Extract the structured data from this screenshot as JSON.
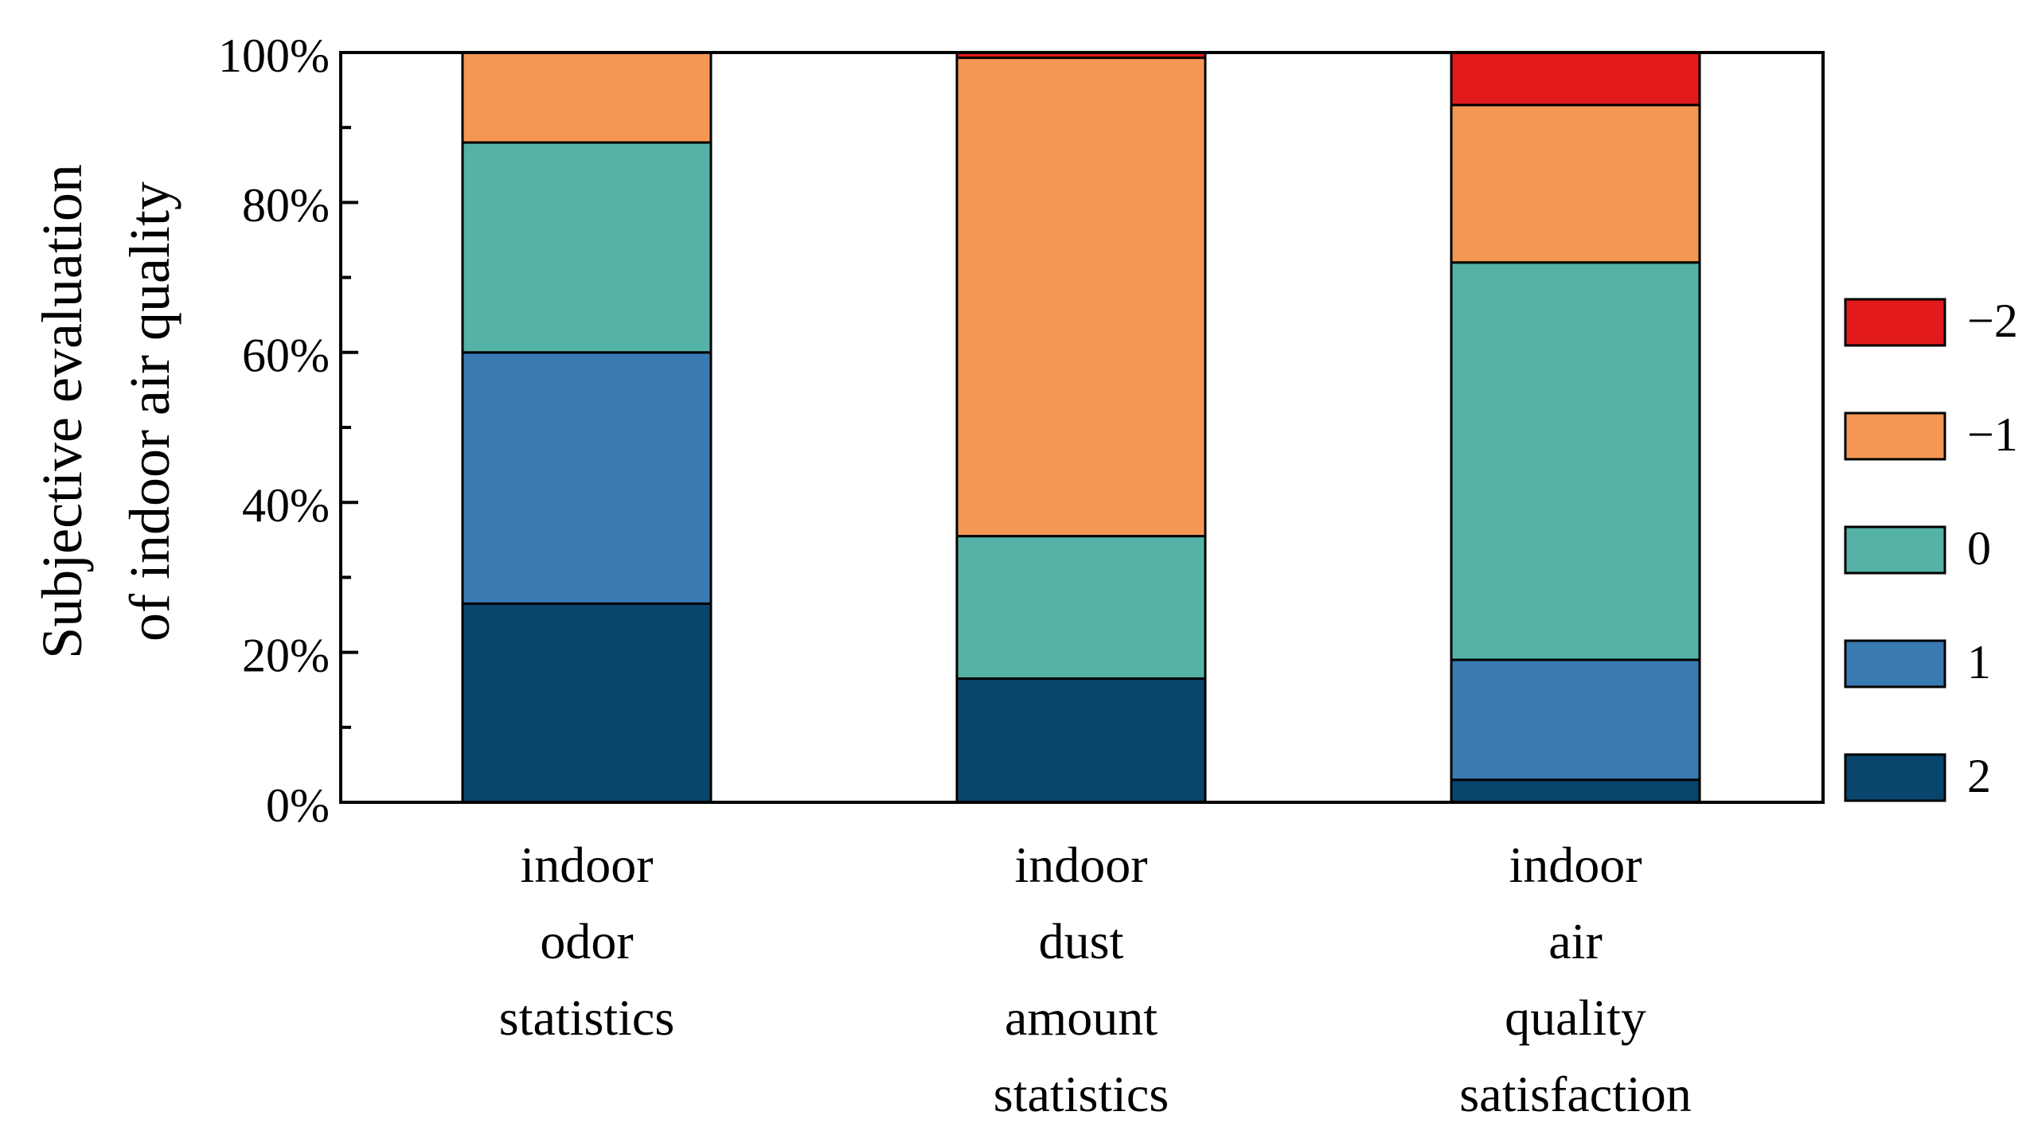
{
  "chart_data": {
    "type": "bar",
    "stacked": true,
    "percent": true,
    "title": "",
    "xlabel": "",
    "ylabel_lines": [
      "Subjective evaluation",
      "of indoor air  quality"
    ],
    "ylim": [
      0,
      100
    ],
    "yticks": [
      0,
      20,
      40,
      60,
      80,
      100
    ],
    "ytick_labels": [
      "0%",
      "20%",
      "40%",
      "60%",
      "80%",
      "100%"
    ],
    "categories": [
      {
        "lines": [
          "indoor",
          "odor",
          "statistics"
        ]
      },
      {
        "lines": [
          "indoor",
          "dust",
          "amount",
          "statistics"
        ]
      },
      {
        "lines": [
          "indoor",
          "air",
          "quality",
          "satisfaction"
        ]
      }
    ],
    "legend_position": "right",
    "series": [
      {
        "name": "2",
        "label": "2",
        "color": "#08466e",
        "values": [
          26.5,
          16.5,
          3.0
        ]
      },
      {
        "name": "1",
        "label": "1",
        "color": "#3a7ab3",
        "values": [
          33.5,
          0.0,
          16.0
        ]
      },
      {
        "name": "0",
        "label": "0",
        "color": "#55b2a6",
        "values": [
          28.0,
          19.0,
          53.0
        ]
      },
      {
        "name": "-1",
        "label": "−1",
        "color": "#f49753",
        "values": [
          12.0,
          63.8,
          21.0
        ]
      },
      {
        "name": "-2",
        "label": "−2",
        "color": "#e31a1c",
        "values": [
          0.0,
          0.7,
          7.0
        ]
      }
    ],
    "legend_order": [
      "-2",
      "-1",
      "0",
      "1",
      "2"
    ]
  }
}
